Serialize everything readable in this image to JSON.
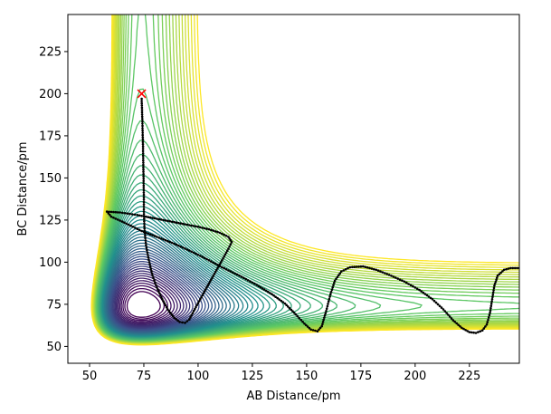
{
  "chart_data": {
    "type": "contour",
    "title": "",
    "xlabel": "AB Distance/pm",
    "ylabel": "BC Distance/pm",
    "xlim": [
      40,
      248
    ],
    "ylim": [
      40,
      247
    ],
    "x_ticks": [
      50,
      75,
      100,
      125,
      150,
      175,
      200,
      225
    ],
    "y_ticks": [
      50,
      75,
      100,
      125,
      150,
      175,
      200,
      225
    ],
    "x_tick_labels": [
      "50",
      "75",
      "100",
      "125",
      "150",
      "175",
      "200",
      "225"
    ],
    "y_tick_labels": [
      "50",
      "75",
      "100",
      "125",
      "150",
      "175",
      "200",
      "225"
    ],
    "grid": false,
    "legend": "none",
    "colormap": "viridis",
    "colormap_stops": [
      "#440154",
      "#3b528b",
      "#21918c",
      "#5ec962",
      "#fde725"
    ],
    "contour_level_count": 55,
    "start_point": {
      "x": 74,
      "y": 200,
      "marker": "x",
      "color": "#ff0000"
    },
    "trajectory": {
      "color": "#000000",
      "marker": "dots",
      "points": [
        [
          74,
          197
        ],
        [
          74.3,
          185
        ],
        [
          74.6,
          170
        ],
        [
          74.8,
          155
        ],
        [
          75,
          140
        ],
        [
          75,
          130
        ],
        [
          75.3,
          120
        ],
        [
          76,
          110
        ],
        [
          77.5,
          100
        ],
        [
          79,
          92
        ],
        [
          81,
          85
        ],
        [
          83.5,
          78
        ],
        [
          86,
          72
        ],
        [
          89,
          67
        ],
        [
          91.5,
          64.5
        ],
        [
          94,
          64
        ],
        [
          96,
          66
        ],
        [
          98,
          71
        ],
        [
          101,
          78
        ],
        [
          104,
          85
        ],
        [
          107.5,
          93
        ],
        [
          111,
          101
        ],
        [
          114,
          108
        ],
        [
          115.5,
          112
        ],
        [
          114,
          115
        ],
        [
          110,
          117.5
        ],
        [
          105,
          119.5
        ],
        [
          100,
          121
        ],
        [
          94,
          122.5
        ],
        [
          88,
          124
        ],
        [
          80,
          126
        ],
        [
          72,
          128
        ],
        [
          64,
          129.5
        ],
        [
          58,
          130
        ],
        [
          60,
          127
        ],
        [
          66,
          123.5
        ],
        [
          74,
          118.5
        ],
        [
          80,
          115.5
        ],
        [
          88,
          111.5
        ],
        [
          95,
          107.5
        ],
        [
          103,
          102.5
        ],
        [
          111,
          97
        ],
        [
          119,
          92
        ],
        [
          127,
          86.5
        ],
        [
          134,
          81
        ],
        [
          140,
          75.5
        ],
        [
          145,
          69
        ],
        [
          149,
          63.5
        ],
        [
          152,
          60
        ],
        [
          155,
          59
        ],
        [
          157,
          62
        ],
        [
          159,
          71
        ],
        [
          161,
          81
        ],
        [
          163,
          89
        ],
        [
          166,
          94.5
        ],
        [
          170,
          97
        ],
        [
          176,
          97.5
        ],
        [
          182,
          95.5
        ],
        [
          188,
          92.5
        ],
        [
          195,
          88.5
        ],
        [
          202,
          83.5
        ],
        [
          208,
          78
        ],
        [
          213,
          72
        ],
        [
          217.5,
          65.5
        ],
        [
          221.5,
          61
        ],
        [
          225,
          58.5
        ],
        [
          228,
          58
        ],
        [
          231,
          59.5
        ],
        [
          233,
          63
        ],
        [
          234.5,
          70
        ],
        [
          235.5,
          78
        ],
        [
          236.5,
          86
        ],
        [
          238,
          92
        ],
        [
          241,
          95.5
        ],
        [
          244,
          96.5
        ],
        [
          248,
          96.5
        ]
      ]
    }
  }
}
